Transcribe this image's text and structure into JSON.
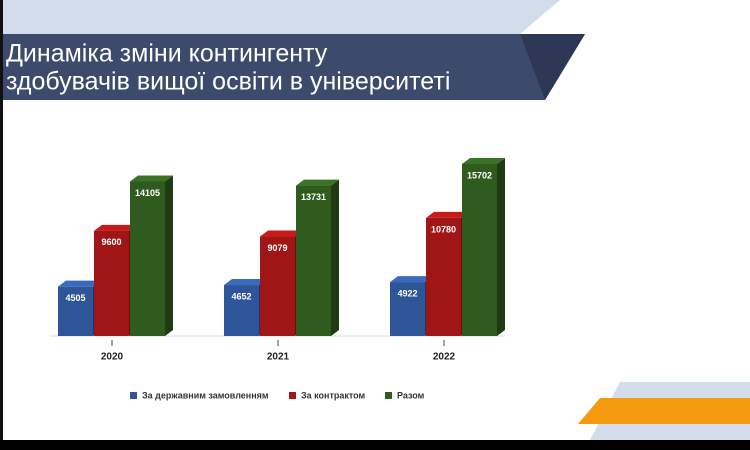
{
  "chart_data": {
    "type": "bar3d",
    "title": [
      "Динаміка зміни контингенту",
      "здобувачів вищої освіти в університеті"
    ],
    "categories": [
      "2020",
      "2021",
      "2022"
    ],
    "series": [
      {
        "name": "За державним замовленням",
        "color": "#2e5597",
        "values": [
          4505,
          4652,
          4922
        ]
      },
      {
        "name": "За контрактом",
        "color": "#a01515",
        "values": [
          9600,
          9079,
          10780
        ]
      },
      {
        "name": "Разом",
        "color": "#2f5b1f",
        "values": [
          14105,
          13731,
          15702
        ]
      }
    ]
  }
}
